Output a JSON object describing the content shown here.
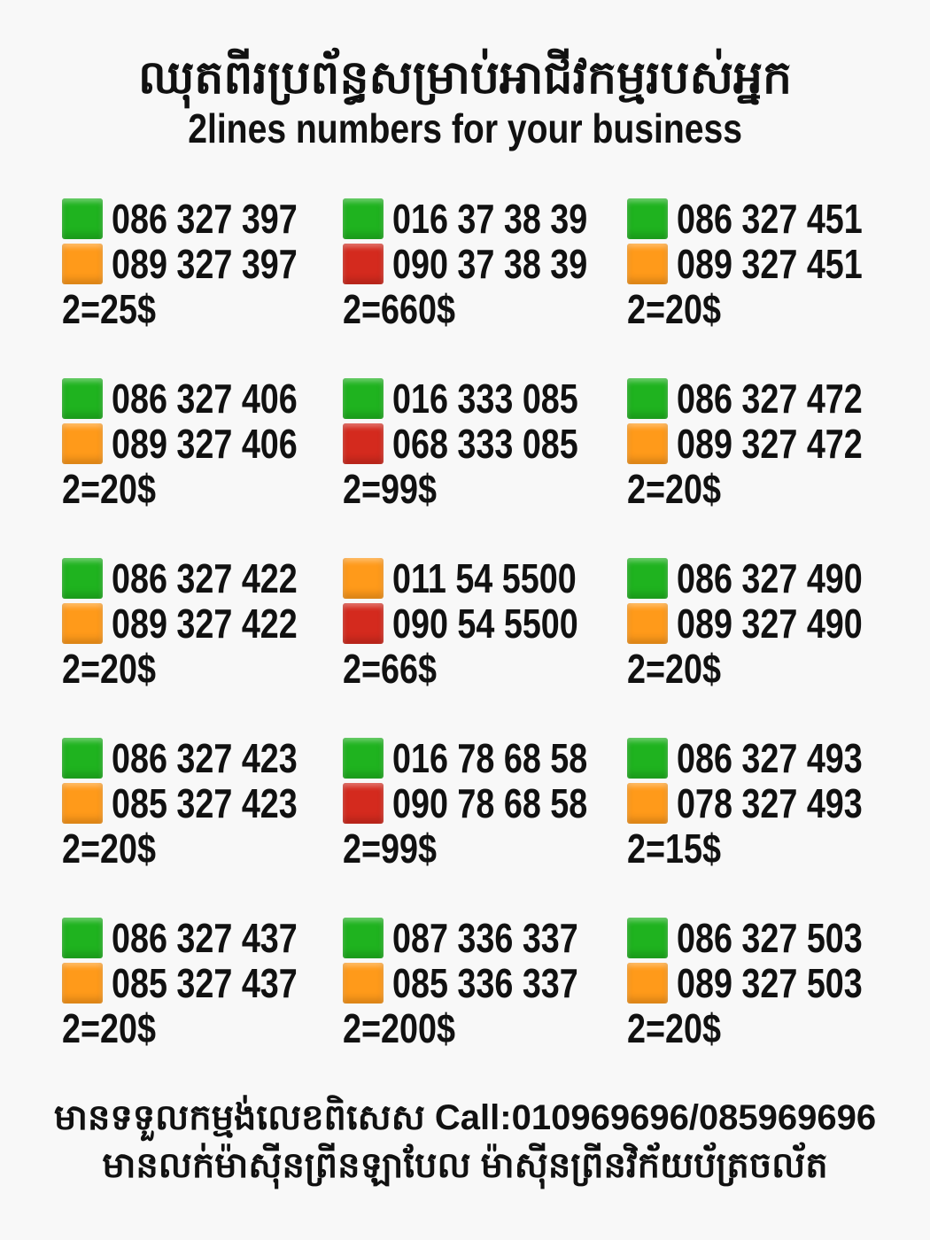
{
  "header": {
    "title_khmer": "ឈុតពីរប្រព័ន្ធសម្រាប់អាជីវកម្មរបស់អ្នក",
    "title_english": "2lines numbers for your business"
  },
  "colors": {
    "green": "#1fb31f",
    "orange": "#ff9a1a",
    "red": "#d42a1e"
  },
  "sets": [
    {
      "lines": [
        {
          "color": "green",
          "number": "086 327 397"
        },
        {
          "color": "orange",
          "number": "089 327 397"
        }
      ],
      "price": "2=25$"
    },
    {
      "lines": [
        {
          "color": "green",
          "number": "016 37 38 39"
        },
        {
          "color": "red",
          "number": "090 37 38 39"
        }
      ],
      "price": "2=660$"
    },
    {
      "lines": [
        {
          "color": "green",
          "number": "086 327 451"
        },
        {
          "color": "orange",
          "number": "089 327 451"
        }
      ],
      "price": "2=20$"
    },
    {
      "lines": [
        {
          "color": "green",
          "number": "086 327 406"
        },
        {
          "color": "orange",
          "number": "089 327 406"
        }
      ],
      "price": "2=20$"
    },
    {
      "lines": [
        {
          "color": "green",
          "number": "016 333 085"
        },
        {
          "color": "red",
          "number": "068 333 085"
        }
      ],
      "price": "2=99$"
    },
    {
      "lines": [
        {
          "color": "green",
          "number": "086 327 472"
        },
        {
          "color": "orange",
          "number": "089 327 472"
        }
      ],
      "price": "2=20$"
    },
    {
      "lines": [
        {
          "color": "green",
          "number": "086 327 422"
        },
        {
          "color": "orange",
          "number": "089 327 422"
        }
      ],
      "price": "2=20$"
    },
    {
      "lines": [
        {
          "color": "orange",
          "number": "011 54 5500"
        },
        {
          "color": "red",
          "number": "090 54 5500"
        }
      ],
      "price": "2=66$"
    },
    {
      "lines": [
        {
          "color": "green",
          "number": "086 327 490"
        },
        {
          "color": "orange",
          "number": "089 327 490"
        }
      ],
      "price": "2=20$"
    },
    {
      "lines": [
        {
          "color": "green",
          "number": "086 327 423"
        },
        {
          "color": "orange",
          "number": "085 327 423"
        }
      ],
      "price": "2=20$"
    },
    {
      "lines": [
        {
          "color": "green",
          "number": "016 78 68 58"
        },
        {
          "color": "red",
          "number": "090 78 68 58"
        }
      ],
      "price": "2=99$"
    },
    {
      "lines": [
        {
          "color": "green",
          "number": "086 327 493"
        },
        {
          "color": "orange",
          "number": "078 327 493"
        }
      ],
      "price": "2=15$"
    },
    {
      "lines": [
        {
          "color": "green",
          "number": "086 327 437"
        },
        {
          "color": "orange",
          "number": "085 327 437"
        }
      ],
      "price": "2=20$"
    },
    {
      "lines": [
        {
          "color": "green",
          "number": "087 336 337"
        },
        {
          "color": "orange",
          "number": "085 336 337"
        }
      ],
      "price": "2=200$"
    },
    {
      "lines": [
        {
          "color": "green",
          "number": "086 327 503"
        },
        {
          "color": "orange",
          "number": "089 327 503"
        }
      ],
      "price": "2=20$"
    }
  ],
  "footer": {
    "line1": "មានទទួលកម្មង់លេខពិសេស Call:010969696/085969696",
    "line2": "មានលក់ម៉ាស៊ីនព្រីនឡាបែល ម៉ាស៊ីនព្រីនវិក័យប័ត្រចល័ត"
  }
}
